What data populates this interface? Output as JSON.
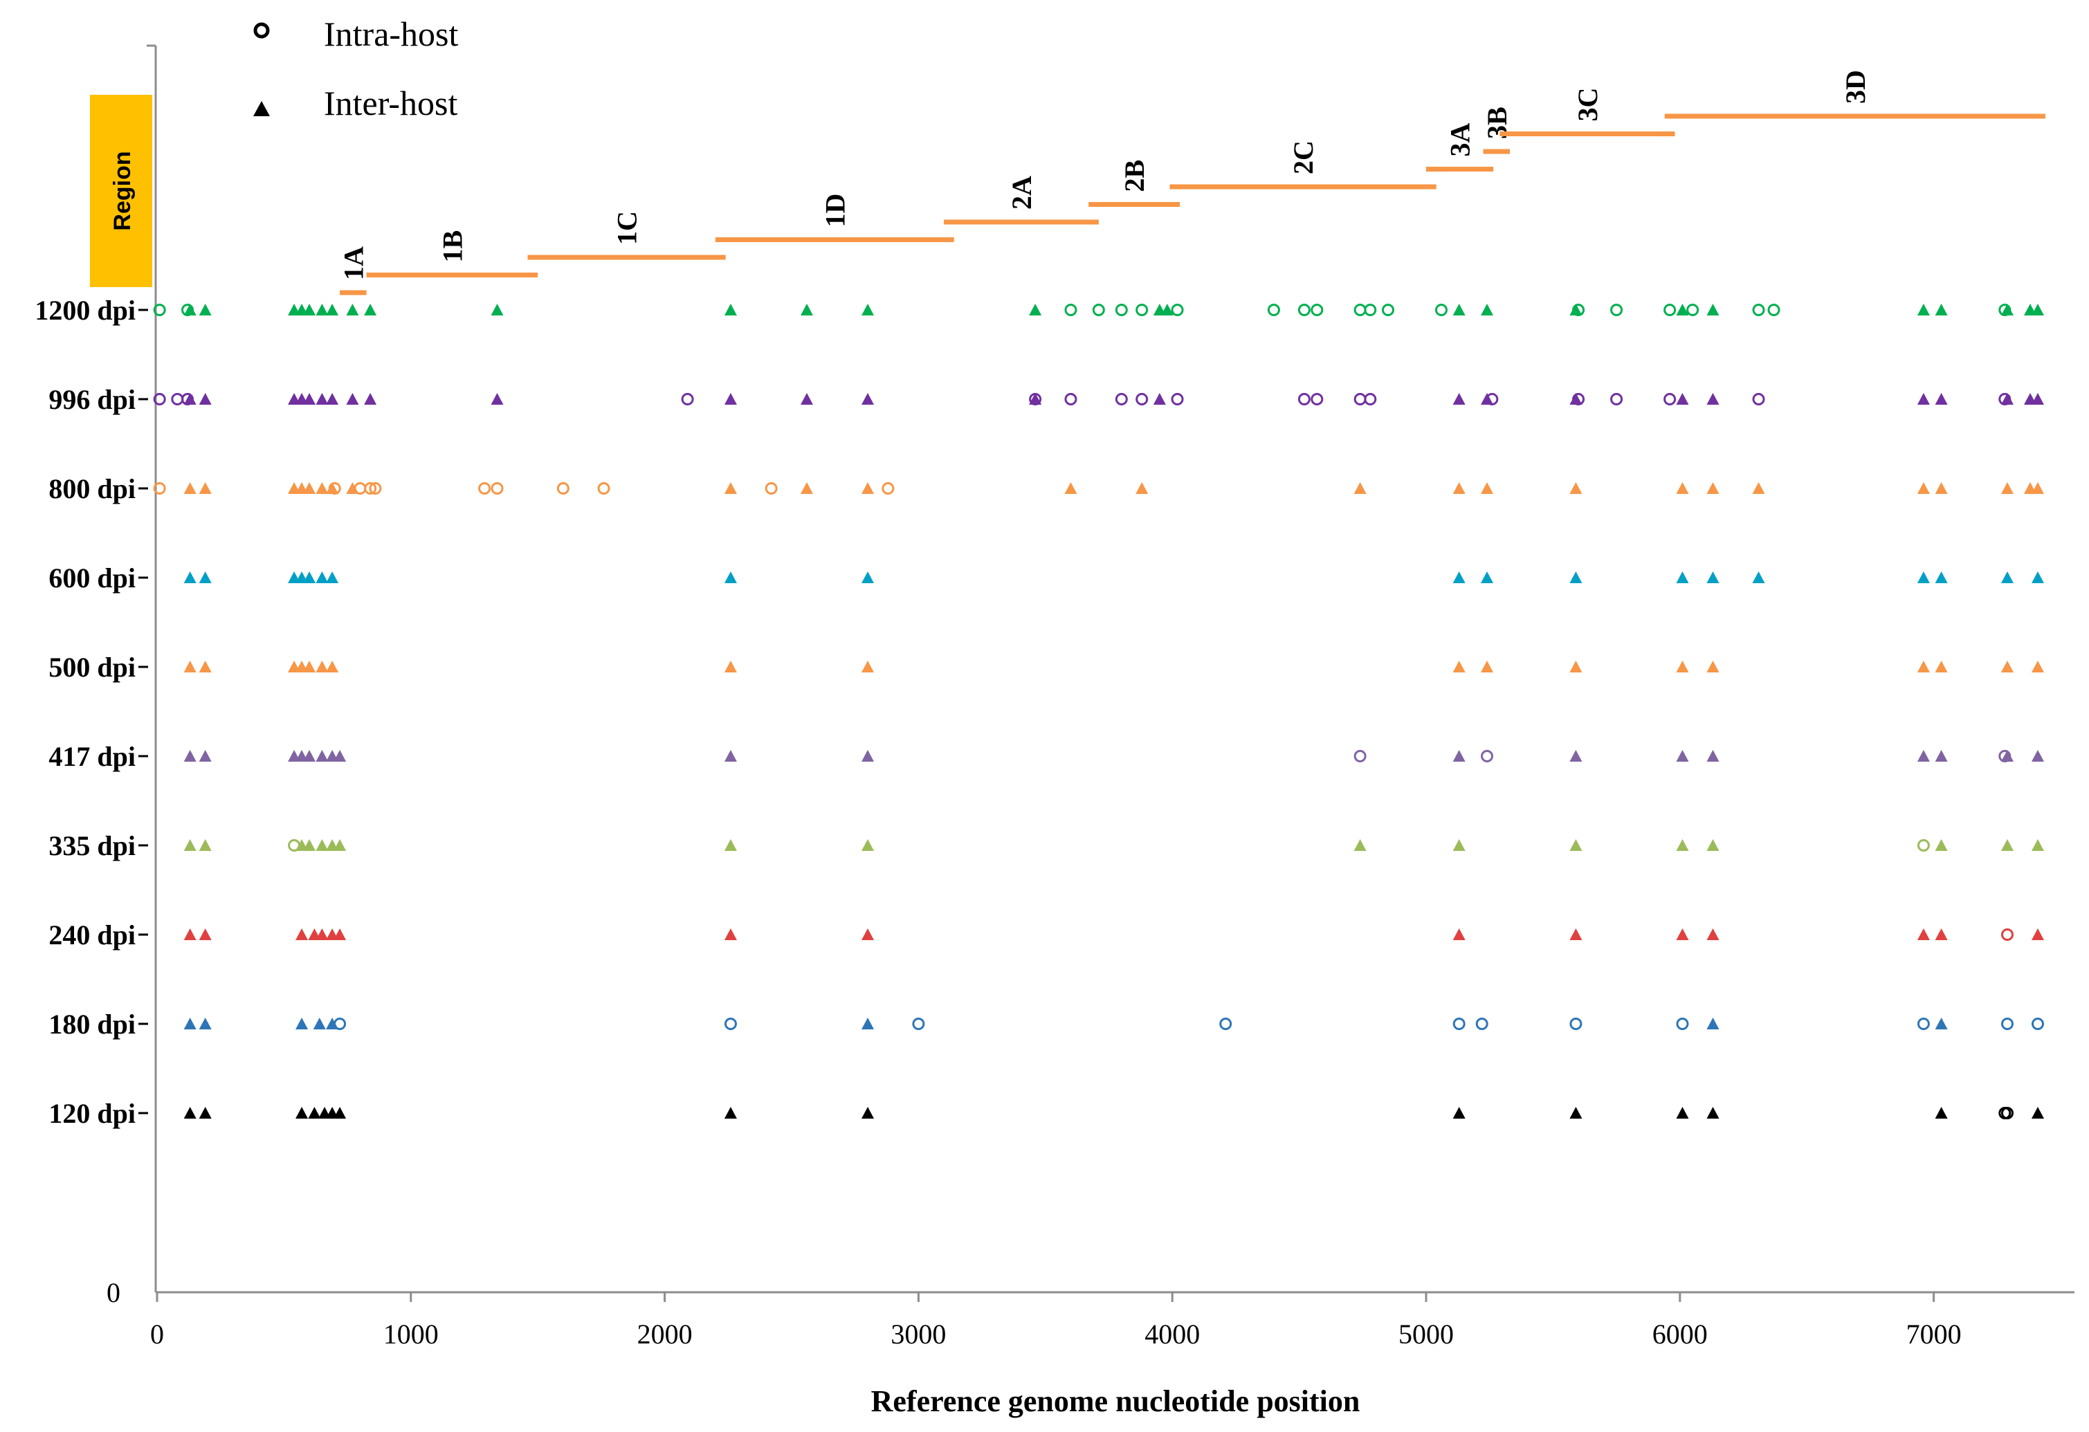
{
  "chart_data": {
    "type": "scatter",
    "title": "",
    "xlabel": "Reference genome nucleotide position",
    "ylabel": "",
    "xlim": [
      0,
      7600
    ],
    "xticks": [
      0,
      1000,
      2000,
      3000,
      4000,
      5000,
      6000,
      7000
    ],
    "y_zero_label": "0",
    "grid": false,
    "legend": {
      "placement": "top-left",
      "entries": [
        {
          "label": "Intra-host",
          "marker": "circle"
        },
        {
          "label": "Inter-host",
          "marker": "triangle"
        }
      ]
    },
    "region_label": "Region",
    "region_color": "#ffc000",
    "region_line_color": "#f79646",
    "regions": [
      {
        "name": "1A",
        "start": 720,
        "end": 825,
        "level": 0
      },
      {
        "name": "1B",
        "start": 825,
        "end": 1500,
        "level": 1
      },
      {
        "name": "1C",
        "start": 1460,
        "end": 2240,
        "level": 2
      },
      {
        "name": "1D",
        "start": 2200,
        "end": 3140,
        "level": 3
      },
      {
        "name": "2A",
        "start": 3100,
        "end": 3710,
        "level": 4
      },
      {
        "name": "2B",
        "start": 3670,
        "end": 4030,
        "level": 5
      },
      {
        "name": "2C",
        "start": 3990,
        "end": 5040,
        "level": 6
      },
      {
        "name": "3A",
        "start": 5000,
        "end": 5265,
        "level": 7
      },
      {
        "name": "3B",
        "start": 5225,
        "end": 5330,
        "level": 8
      },
      {
        "name": "3C",
        "start": 5290,
        "end": 5980,
        "level": 9
      },
      {
        "name": "3D",
        "start": 5940,
        "end": 7440,
        "level": 10
      }
    ],
    "series": [
      {
        "name": "1200 dpi",
        "color": "#00b050",
        "intra": [
          10,
          120,
          3600,
          3710,
          3800,
          3880,
          4020,
          4400,
          4520,
          4570,
          4740,
          4780,
          4850,
          5060,
          5600,
          5750,
          5960,
          6050,
          6310,
          6370,
          7280
        ],
        "inter": [
          130,
          190,
          540,
          570,
          600,
          650,
          690,
          770,
          840,
          1340,
          2260,
          2560,
          2800,
          3460,
          3950,
          3980,
          5130,
          5240,
          5590,
          6010,
          6130,
          6960,
          7030,
          7290,
          7380,
          7410
        ]
      },
      {
        "name": "996 dpi",
        "color": "#7030a0",
        "intra": [
          10,
          80,
          120,
          2090,
          3460,
          3600,
          3800,
          3880,
          4020,
          4520,
          4570,
          4740,
          4780,
          5260,
          5600,
          5750,
          5960,
          6310,
          7280
        ],
        "inter": [
          130,
          190,
          540,
          570,
          600,
          650,
          690,
          770,
          840,
          1340,
          2260,
          2560,
          2800,
          3460,
          3950,
          5130,
          5240,
          5590,
          6010,
          6130,
          6960,
          7030,
          7290,
          7380,
          7410
        ]
      },
      {
        "name": "800 dpi",
        "color": "#f79646",
        "intra": [
          10,
          700,
          800,
          840,
          860,
          1290,
          1340,
          1600,
          1760,
          2420,
          2880
        ],
        "inter": [
          130,
          190,
          540,
          570,
          600,
          650,
          690,
          770,
          2260,
          2560,
          2800,
          3600,
          3880,
          4740,
          5130,
          5240,
          5590,
          6010,
          6130,
          6310,
          6960,
          7030,
          7290,
          7380,
          7410
        ]
      },
      {
        "name": "600 dpi",
        "color": "#00a0c6",
        "intra": [],
        "inter": [
          130,
          190,
          540,
          570,
          600,
          650,
          690,
          2260,
          2800,
          5130,
          5240,
          5590,
          6010,
          6130,
          6310,
          6960,
          7030,
          7290,
          7410
        ]
      },
      {
        "name": "500 dpi",
        "color": "#f79646",
        "intra": [],
        "inter": [
          130,
          190,
          540,
          570,
          600,
          650,
          690,
          2260,
          2800,
          5130,
          5240,
          5590,
          6010,
          6130,
          6960,
          7030,
          7290,
          7410
        ]
      },
      {
        "name": "417 dpi",
        "color": "#8064a2",
        "intra": [
          4740,
          5240,
          7280
        ],
        "inter": [
          130,
          190,
          540,
          570,
          600,
          650,
          690,
          720,
          2260,
          2800,
          5130,
          5590,
          6010,
          6130,
          6960,
          7030,
          7290,
          7410
        ]
      },
      {
        "name": "335 dpi",
        "color": "#9bbb59",
        "intra": [
          540,
          6960
        ],
        "inter": [
          130,
          190,
          570,
          600,
          650,
          690,
          720,
          2260,
          2800,
          4740,
          5130,
          5590,
          6010,
          6130,
          7030,
          7290,
          7410
        ]
      },
      {
        "name": "240 dpi",
        "color": "#e04040",
        "intra": [
          7290
        ],
        "inter": [
          130,
          190,
          570,
          620,
          650,
          690,
          720,
          2260,
          2800,
          5130,
          5590,
          6010,
          6130,
          6960,
          7030,
          7410
        ]
      },
      {
        "name": "180 dpi",
        "color": "#2e75b6",
        "intra": [
          720,
          2260,
          3000,
          4210,
          5130,
          5220,
          5590,
          6010,
          6960,
          7290,
          7410
        ],
        "inter": [
          130,
          190,
          570,
          640,
          690,
          2800,
          6130,
          7030
        ]
      },
      {
        "name": "120 dpi",
        "color": "#000000",
        "intra": [
          7280,
          7290
        ],
        "inter": [
          130,
          190,
          570,
          620,
          660,
          690,
          720,
          2260,
          2800,
          5130,
          5590,
          6010,
          6130,
          7030,
          7410
        ]
      }
    ]
  }
}
